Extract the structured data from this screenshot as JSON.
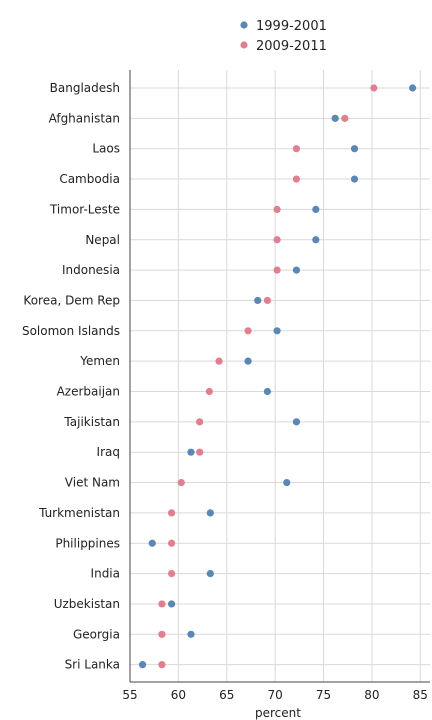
{
  "chart_data": {
    "type": "scatter",
    "title": "",
    "xlabel": "percent",
    "ylabel": "",
    "xlim": [
      55,
      86
    ],
    "xticks": [
      55,
      60,
      65,
      70,
      75,
      80,
      85
    ],
    "grid": true,
    "legend_position": "top",
    "categories": [
      "Bangladesh",
      "Afghanistan",
      "Laos",
      "Cambodia",
      "Timor-Leste",
      "Nepal",
      "Indonesia",
      "Korea, Dem Rep",
      "Solomon Islands",
      "Yemen",
      "Azerbaijan",
      "Tajikistan",
      "Iraq",
      "Viet Nam",
      "Turkmenistan",
      "Philippines",
      "India",
      "Uzbekistan",
      "Georgia",
      "Sri Lanka"
    ],
    "series": [
      {
        "name": "1999-2001",
        "color": "#5b87b5",
        "values": [
          84.2,
          76.2,
          78.2,
          78.2,
          74.2,
          74.2,
          72.2,
          68.2,
          70.2,
          67.2,
          69.2,
          72.2,
          61.3,
          71.2,
          63.3,
          57.3,
          63.3,
          59.3,
          61.3,
          56.3
        ]
      },
      {
        "name": "2009-2011",
        "color": "#e07f8f",
        "values": [
          80.2,
          77.2,
          72.2,
          72.2,
          70.2,
          70.2,
          70.2,
          69.2,
          67.2,
          64.2,
          63.2,
          62.2,
          62.2,
          60.3,
          59.3,
          59.3,
          59.3,
          58.3,
          58.3,
          58.3
        ]
      }
    ]
  }
}
